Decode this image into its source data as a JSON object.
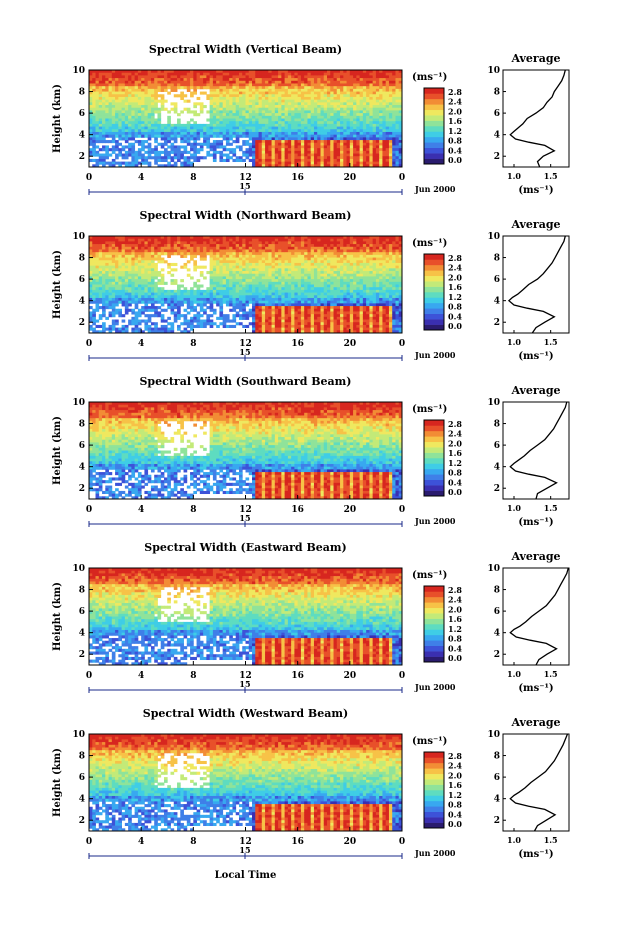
{
  "figure": {
    "xlabel": "Local Time",
    "colorbar_unit": "(ms⁻¹)",
    "avg_title": "Average",
    "avg_xlabel": "(ms⁻¹)",
    "date_label": "Jun 2000",
    "day_boundary_label": "15",
    "ylabel": "Height (km)"
  },
  "chart_data": [
    {
      "type": "heatmap",
      "title": "Spectral Width (Vertical Beam)",
      "xlabel": "Local Time",
      "ylabel": "Height (km)",
      "xticks": [
        "0",
        "4",
        "8",
        "12",
        "16",
        "20",
        "0"
      ],
      "xlim": [
        0,
        24
      ],
      "yticks": [
        2,
        4,
        6,
        8,
        10
      ],
      "ylim": [
        1,
        10
      ],
      "colorbar": {
        "label": "(ms⁻¹)",
        "ticks": [
          "2.8",
          "2.4",
          "2.0",
          "1.6",
          "1.2",
          "0.8",
          "0.4",
          "0.0"
        ],
        "range": [
          0.0,
          3.0
        ]
      },
      "average_profile": {
        "title": "Average",
        "xlabel": "(ms⁻¹)",
        "xticks": [
          "1.0",
          "1.5"
        ],
        "xlim": [
          0.85,
          1.75
        ],
        "height": [
          1.0,
          1.5,
          2.0,
          2.5,
          3.0,
          3.3,
          3.6,
          4.0,
          4.3,
          4.6,
          5.0,
          5.5,
          6.0,
          6.5,
          7.0,
          7.5,
          8.0,
          8.5,
          9.0,
          9.5,
          10.0
        ],
        "width": [
          1.35,
          1.32,
          1.4,
          1.55,
          1.42,
          1.2,
          1.02,
          0.95,
          1.0,
          1.05,
          1.12,
          1.18,
          1.3,
          1.4,
          1.45,
          1.52,
          1.55,
          1.6,
          1.65,
          1.68,
          1.7
        ]
      }
    },
    {
      "type": "heatmap",
      "title": "Spectral Width (Northward Beam)",
      "xlabel": "Local Time",
      "ylabel": "Height (km)",
      "xticks": [
        "0",
        "4",
        "8",
        "12",
        "16",
        "20",
        "0"
      ],
      "xlim": [
        0,
        24
      ],
      "yticks": [
        2,
        4,
        6,
        8,
        10
      ],
      "ylim": [
        1,
        10
      ],
      "colorbar": {
        "label": "(ms⁻¹)",
        "ticks": [
          "2.8",
          "2.4",
          "2.0",
          "1.6",
          "1.2",
          "0.8",
          "0.4",
          "0.0"
        ],
        "range": [
          0.0,
          3.0
        ]
      },
      "average_profile": {
        "title": "Average",
        "xlabel": "(ms⁻¹)",
        "xticks": [
          "1.0",
          "1.5"
        ],
        "xlim": [
          0.85,
          1.75
        ],
        "height": [
          1.0,
          1.5,
          2.0,
          2.5,
          3.0,
          3.3,
          3.6,
          4.0,
          4.3,
          4.6,
          5.0,
          5.5,
          6.0,
          6.5,
          7.0,
          7.5,
          8.0,
          8.5,
          9.0,
          9.5,
          10.0
        ],
        "width": [
          1.25,
          1.3,
          1.42,
          1.55,
          1.4,
          1.18,
          1.0,
          0.93,
          0.98,
          1.05,
          1.12,
          1.2,
          1.32,
          1.4,
          1.46,
          1.52,
          1.56,
          1.6,
          1.64,
          1.68,
          1.7
        ]
      }
    },
    {
      "type": "heatmap",
      "title": "Spectral Width (Southward Beam)",
      "xlabel": "Local Time",
      "ylabel": "Height (km)",
      "xticks": [
        "0",
        "4",
        "8",
        "12",
        "16",
        "20",
        "0"
      ],
      "xlim": [
        0,
        24
      ],
      "yticks": [
        2,
        4,
        6,
        8,
        10
      ],
      "ylim": [
        1,
        10
      ],
      "colorbar": {
        "label": "(ms⁻¹)",
        "ticks": [
          "2.8",
          "2.4",
          "2.0",
          "1.6",
          "1.2",
          "0.8",
          "0.4",
          "0.0"
        ],
        "range": [
          0.0,
          3.0
        ]
      },
      "average_profile": {
        "title": "Average",
        "xlabel": "(ms⁻¹)",
        "xticks": [
          "1.0",
          "1.5"
        ],
        "xlim": [
          0.85,
          1.75
        ],
        "height": [
          1.0,
          1.5,
          2.0,
          2.5,
          3.0,
          3.3,
          3.6,
          4.0,
          4.3,
          4.6,
          5.0,
          5.5,
          6.0,
          6.5,
          7.0,
          7.5,
          8.0,
          8.5,
          9.0,
          9.5,
          10.0
        ],
        "width": [
          1.3,
          1.32,
          1.45,
          1.58,
          1.42,
          1.2,
          1.02,
          0.95,
          1.0,
          1.06,
          1.14,
          1.22,
          1.32,
          1.42,
          1.48,
          1.54,
          1.58,
          1.62,
          1.66,
          1.7,
          1.72
        ]
      }
    },
    {
      "type": "heatmap",
      "title": "Spectral Width (Eastward Beam)",
      "xlabel": "Local Time",
      "ylabel": "Height (km)",
      "xticks": [
        "0",
        "4",
        "8",
        "12",
        "16",
        "20",
        "0"
      ],
      "xlim": [
        0,
        24
      ],
      "yticks": [
        2,
        4,
        6,
        8,
        10
      ],
      "ylim": [
        1,
        10
      ],
      "colorbar": {
        "label": "(ms⁻¹)",
        "ticks": [
          "2.8",
          "2.4",
          "2.0",
          "1.6",
          "1.2",
          "0.8",
          "0.4",
          "0.0"
        ],
        "range": [
          0.0,
          3.0
        ]
      },
      "average_profile": {
        "title": "Average",
        "xlabel": "(ms⁻¹)",
        "xticks": [
          "1.0",
          "1.5"
        ],
        "xlim": [
          0.85,
          1.75
        ],
        "height": [
          1.0,
          1.5,
          2.0,
          2.5,
          3.0,
          3.3,
          3.6,
          4.0,
          4.3,
          4.6,
          5.0,
          5.5,
          6.0,
          6.5,
          7.0,
          7.5,
          8.0,
          8.5,
          9.0,
          9.5,
          10.0
        ],
        "width": [
          1.3,
          1.34,
          1.45,
          1.58,
          1.44,
          1.22,
          1.03,
          0.95,
          1.0,
          1.08,
          1.16,
          1.24,
          1.34,
          1.44,
          1.5,
          1.56,
          1.6,
          1.64,
          1.68,
          1.72,
          1.74
        ]
      }
    },
    {
      "type": "heatmap",
      "title": "Spectral Width (Westward Beam)",
      "xlabel": "Local Time",
      "ylabel": "Height (km)",
      "xticks": [
        "0",
        "4",
        "8",
        "12",
        "16",
        "20",
        "0"
      ],
      "xlim": [
        0,
        24
      ],
      "yticks": [
        2,
        4,
        6,
        8,
        10
      ],
      "ylim": [
        1,
        10
      ],
      "colorbar": {
        "label": "(ms⁻¹)",
        "ticks": [
          "2.8",
          "2.4",
          "2.0",
          "1.6",
          "1.2",
          "0.8",
          "0.4",
          "0.0"
        ],
        "range": [
          0.0,
          3.0
        ]
      },
      "average_profile": {
        "title": "Average",
        "xlabel": "(ms⁻¹)",
        "xticks": [
          "1.0",
          "1.5"
        ],
        "xlim": [
          0.85,
          1.75
        ],
        "height": [
          1.0,
          1.5,
          2.0,
          2.5,
          3.0,
          3.3,
          3.6,
          4.0,
          4.3,
          4.6,
          5.0,
          5.5,
          6.0,
          6.5,
          7.0,
          7.5,
          8.0,
          8.5,
          9.0,
          9.5,
          10.0
        ],
        "width": [
          1.28,
          1.32,
          1.44,
          1.56,
          1.42,
          1.2,
          1.02,
          0.95,
          1.0,
          1.07,
          1.15,
          1.23,
          1.33,
          1.43,
          1.49,
          1.55,
          1.59,
          1.63,
          1.67,
          1.7,
          1.73
        ]
      }
    }
  ],
  "colormap": [
    "#2a1b6e",
    "#3a2fb0",
    "#3d52d8",
    "#3f7fe8",
    "#38a8f0",
    "#3fcde6",
    "#5edcc0",
    "#8fe39a",
    "#c3ea78",
    "#efe85f",
    "#f7c247",
    "#f28d35",
    "#e8502a",
    "#d7261f"
  ]
}
